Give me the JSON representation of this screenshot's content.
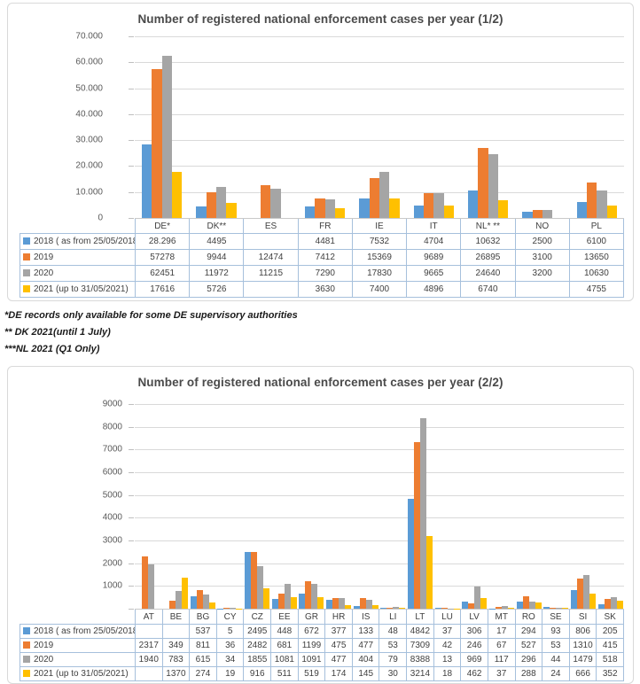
{
  "footnotes": [
    "*DE records only available for some DE supervisory authorities",
    "** DK 2021(until 1 July)",
    "***NL 2021 (Q1 Only)"
  ],
  "palette": {
    "s2018": "#5B9BD5",
    "s2019": "#ED7D31",
    "s2020": "#A5A5A5",
    "s2021": "#FFC000",
    "gridline": "#d9d9d9",
    "table_border": "#a6c0dc"
  },
  "chart_data": [
    {
      "type": "bar",
      "title": "Number of registered national enforcement cases per year (1/2)",
      "xlabel": "",
      "ylabel": "",
      "ylim": [
        0,
        70000
      ],
      "grid": true,
      "legend_position": "data-table-left",
      "categories": [
        "DE*",
        "DK**",
        "ES",
        "FR",
        "IE",
        "IT",
        "NL* **",
        "NO",
        "PL"
      ],
      "yticks": [
        {
          "value": 70000,
          "label": "70.000"
        },
        {
          "value": 60000,
          "label": "60.000"
        },
        {
          "value": 50000,
          "label": "50.000"
        },
        {
          "value": 40000,
          "label": "40.000"
        },
        {
          "value": 30000,
          "label": "30.000"
        },
        {
          "value": 20000,
          "label": "20.000"
        },
        {
          "value": 10000,
          "label": "10.000"
        },
        {
          "value": 0,
          "label": "0"
        }
      ],
      "series": [
        {
          "name": "2018 ( as from 25/05/2018)",
          "color": "#5B9BD5",
          "values": [
            28296,
            4495,
            null,
            4481,
            7532,
            4704,
            10632,
            2500,
            6100
          ],
          "cells": [
            "28.296",
            "4495",
            "",
            "4481",
            "7532",
            "4704",
            "10632",
            "2500",
            "6100"
          ]
        },
        {
          "name": "2019",
          "color": "#ED7D31",
          "values": [
            57278,
            9944,
            12474,
            7412,
            15369,
            9689,
            26895,
            3100,
            13650
          ],
          "cells": [
            "57278",
            "9944",
            "12474",
            "7412",
            "15369",
            "9689",
            "26895",
            "3100",
            "13650"
          ]
        },
        {
          "name": "2020",
          "color": "#A5A5A5",
          "values": [
            62451,
            11972,
            11215,
            7290,
            17830,
            9665,
            24640,
            3200,
            10630
          ],
          "cells": [
            "62451",
            "11972",
            "11215",
            "7290",
            "17830",
            "9665",
            "24640",
            "3200",
            "10630"
          ]
        },
        {
          "name": "2021 (up to 31/05/2021)",
          "color": "#FFC000",
          "values": [
            17616,
            5726,
            null,
            3630,
            7400,
            4896,
            6740,
            null,
            4755
          ],
          "cells": [
            "17616",
            "5726",
            "",
            "3630",
            "7400",
            "4896",
            "6740",
            "",
            "4755"
          ]
        }
      ]
    },
    {
      "type": "bar",
      "title": "Number of registered national enforcement cases per year (2/2)",
      "xlabel": "",
      "ylabel": "",
      "ylim": [
        0,
        9000
      ],
      "grid": true,
      "legend_position": "data-table-left",
      "categories": [
        "AT",
        "BE",
        "BG",
        "CY",
        "CZ",
        "EE",
        "GR",
        "HR",
        "IS",
        "LI",
        "LT",
        "LU",
        "LV",
        "MT",
        "RO",
        "SE",
        "SI",
        "SK"
      ],
      "yticks": [
        {
          "value": 9000,
          "label": "9000"
        },
        {
          "value": 8000,
          "label": "8000"
        },
        {
          "value": 7000,
          "label": "7000"
        },
        {
          "value": 6000,
          "label": "6000"
        },
        {
          "value": 5000,
          "label": "5000"
        },
        {
          "value": 4000,
          "label": "4000"
        },
        {
          "value": 3000,
          "label": "3000"
        },
        {
          "value": 2000,
          "label": "2000"
        },
        {
          "value": 1000,
          "label": "1000"
        }
      ],
      "series": [
        {
          "name": "2018 ( as from 25/05/2018)",
          "color": "#5B9BD5",
          "values": [
            null,
            null,
            537,
            5,
            2495,
            448,
            672,
            377,
            133,
            48,
            4842,
            37,
            306,
            17,
            294,
            93,
            806,
            205
          ],
          "cells": [
            "",
            "",
            "537",
            "5",
            "2495",
            "448",
            "672",
            "377",
            "133",
            "48",
            "4842",
            "37",
            "306",
            "17",
            "294",
            "93",
            "806",
            "205"
          ]
        },
        {
          "name": "2019",
          "color": "#ED7D31",
          "values": [
            2317,
            349,
            811,
            36,
            2482,
            681,
            1199,
            475,
            477,
            53,
            7309,
            42,
            246,
            67,
            527,
            53,
            1310,
            415
          ],
          "cells": [
            "2317",
            "349",
            "811",
            "36",
            "2482",
            "681",
            "1199",
            "475",
            "477",
            "53",
            "7309",
            "42",
            "246",
            "67",
            "527",
            "53",
            "1310",
            "415"
          ]
        },
        {
          "name": "2020",
          "color": "#A5A5A5",
          "values": [
            1940,
            783,
            615,
            34,
            1855,
            1081,
            1091,
            477,
            404,
            79,
            8388,
            13,
            969,
            117,
            296,
            44,
            1479,
            518
          ],
          "cells": [
            "1940",
            "783",
            "615",
            "34",
            "1855",
            "1081",
            "1091",
            "477",
            "404",
            "79",
            "8388",
            "13",
            "969",
            "117",
            "296",
            "44",
            "1479",
            "518"
          ]
        },
        {
          "name": "2021 (up to 31/05/2021)",
          "color": "#FFC000",
          "values": [
            null,
            1370,
            274,
            19,
            916,
            511,
            519,
            174,
            145,
            30,
            3214,
            18,
            462,
            37,
            288,
            24,
            666,
            352
          ],
          "cells": [
            "",
            "1370",
            "274",
            "19",
            "916",
            "511",
            "519",
            "174",
            "145",
            "30",
            "3214",
            "18",
            "462",
            "37",
            "288",
            "24",
            "666",
            "352"
          ]
        }
      ]
    }
  ]
}
